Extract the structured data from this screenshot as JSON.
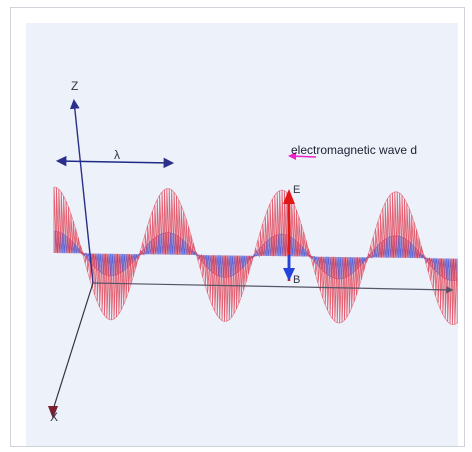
{
  "diagram": {
    "caption": "electromagnetic wave d",
    "axes": {
      "z_label": "Z",
      "x_label": "X"
    },
    "wavelength_label": "λ",
    "field_labels": {
      "electric": "E",
      "magnetic": "B"
    },
    "colors": {
      "background": "#edf1fa",
      "electric_wave": "#e0485a",
      "magnetic_wave": "#3a4fd6",
      "axis_navy": "#2a2f8a",
      "axis_dark": "#333344",
      "caption_arrow": "#ee22cc",
      "e_arrow": "#e21818",
      "b_arrow": "#2244dd"
    }
  }
}
